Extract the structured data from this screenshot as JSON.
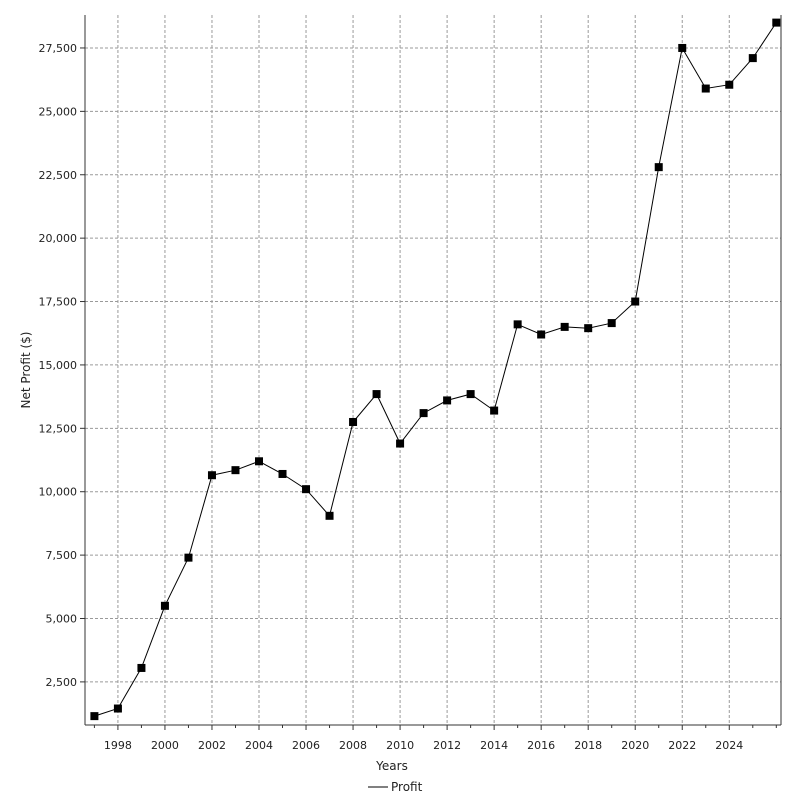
{
  "chart_data": {
    "type": "line",
    "xlabel": "Years",
    "ylabel": "Net Profit ($)",
    "xlim": [
      1996.6,
      2026.2
    ],
    "ylim": [
      800,
      28800
    ],
    "x_ticks": [
      1998,
      2000,
      2002,
      2004,
      2006,
      2008,
      2010,
      2012,
      2014,
      2016,
      2018,
      2020,
      2022,
      2024
    ],
    "y_ticks": [
      2500,
      5000,
      7500,
      10000,
      12500,
      15000,
      17500,
      20000,
      22500,
      25000,
      27500
    ],
    "y_tick_labels": [
      "2,500",
      "5,000",
      "7,500",
      "10,000",
      "12,500",
      "15,000",
      "17,500",
      "20,000",
      "22,500",
      "25,000",
      "27,500"
    ],
    "grid": true,
    "legend_position": "bottom-center",
    "series": [
      {
        "name": "Profit",
        "color": "#000000",
        "marker": "square",
        "x": [
          1997,
          1998,
          1999,
          2000,
          2001,
          2002,
          2003,
          2004,
          2005,
          2006,
          2007,
          2008,
          2009,
          2010,
          2011,
          2012,
          2013,
          2014,
          2015,
          2016,
          2017,
          2018,
          2019,
          2020,
          2021,
          2022,
          2023,
          2024,
          2025,
          2026
        ],
        "values": [
          1150,
          1450,
          3050,
          5500,
          7400,
          10650,
          10850,
          11200,
          10700,
          10100,
          9050,
          12750,
          13850,
          11900,
          13100,
          13600,
          13850,
          13200,
          16600,
          16200,
          16500,
          16450,
          16650,
          17500,
          22800,
          27500,
          25900,
          26050,
          27100,
          28500
        ]
      }
    ]
  }
}
